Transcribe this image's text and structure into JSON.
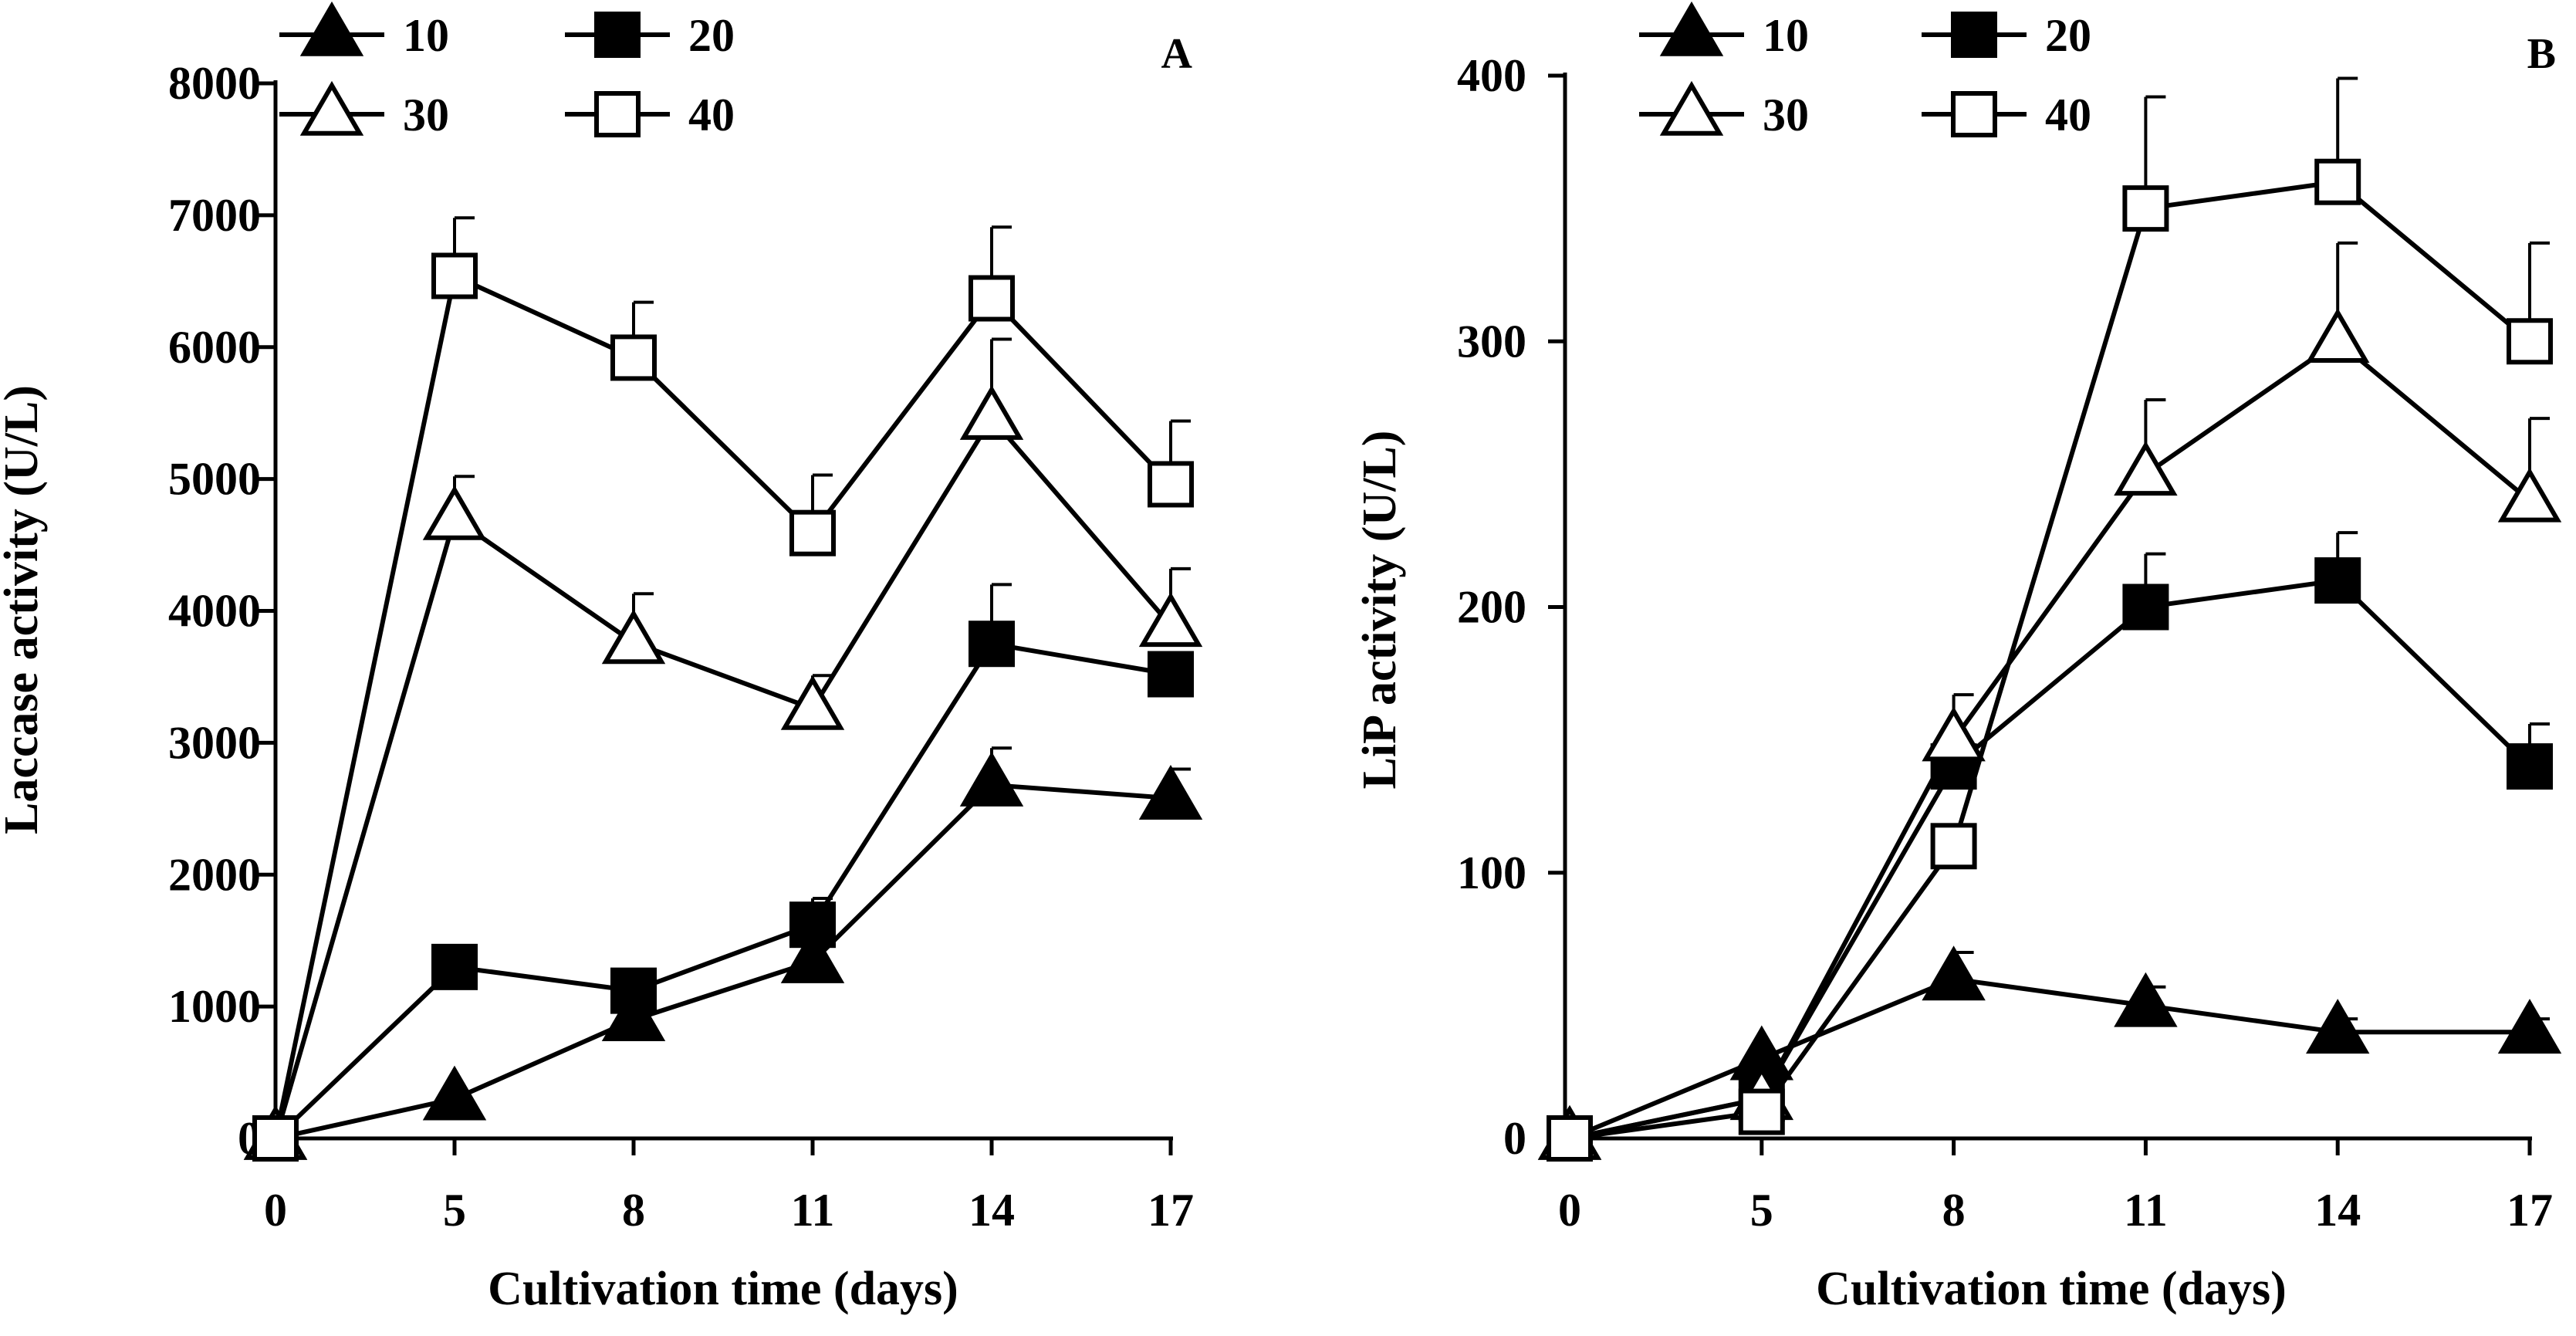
{
  "chart_data": [
    {
      "type": "line",
      "panel_label": "A",
      "title": "",
      "xlabel": "Cultivation time (days)",
      "ylabel": "Laccase activity (U/L)",
      "categories": [
        "0",
        "5",
        "8",
        "11",
        "14",
        "17"
      ],
      "ylim": [
        0,
        8000
      ],
      "yticks": [
        0,
        1000,
        2000,
        3000,
        4000,
        5000,
        6000,
        7000,
        8000
      ],
      "ytick_labels": [
        "0",
        "1000",
        "2000",
        "3000",
        "4000",
        "5000",
        "6000",
        "7000",
        "8000"
      ],
      "grid": false,
      "legend_position": "top",
      "series": [
        {
          "name": "10",
          "marker": "triangle-filled",
          "values": [
            0,
            300,
            900,
            1340,
            2680,
            2580
          ],
          "errors": [
            0,
            0,
            0,
            0,
            280,
            220
          ]
        },
        {
          "name": "20",
          "marker": "square-filled",
          "values": [
            0,
            1300,
            1120,
            1620,
            3750,
            3520
          ],
          "errors": [
            0,
            0,
            0,
            200,
            450,
            0
          ]
        },
        {
          "name": "30",
          "marker": "triangle-open",
          "values": [
            0,
            4700,
            3760,
            3260,
            5460,
            3890
          ],
          "errors": [
            0,
            320,
            370,
            250,
            600,
            430
          ]
        },
        {
          "name": "40",
          "marker": "square-open",
          "values": [
            0,
            6540,
            5920,
            4590,
            6370,
            4960
          ],
          "errors": [
            0,
            440,
            420,
            440,
            540,
            480
          ]
        }
      ]
    },
    {
      "type": "line",
      "panel_label": "B",
      "title": "",
      "xlabel": "Cultivation time (days)",
      "ylabel": "LiP activity (U/L)",
      "categories": [
        "0",
        "5",
        "8",
        "11",
        "14",
        "17"
      ],
      "ylim": [
        0,
        400
      ],
      "yticks": [
        0,
        100,
        200,
        300,
        400
      ],
      "ytick_labels": [
        "0",
        "100",
        "200",
        "300",
        "400"
      ],
      "grid": false,
      "legend_position": "top",
      "series": [
        {
          "name": "10",
          "marker": "triangle-filled",
          "values": [
            0,
            30,
            60,
            50,
            40,
            40
          ],
          "errors": [
            0,
            0,
            10,
            7,
            5,
            5
          ]
        },
        {
          "name": "20",
          "marker": "square-filled",
          "values": [
            0,
            15,
            140,
            200,
            210,
            140
          ],
          "errors": [
            0,
            0,
            0,
            20,
            18,
            16
          ]
        },
        {
          "name": "30",
          "marker": "triangle-open",
          "values": [
            0,
            15,
            150,
            250,
            300,
            240
          ],
          "errors": [
            0,
            0,
            17,
            28,
            37,
            31
          ]
        },
        {
          "name": "40",
          "marker": "square-open",
          "values": [
            0,
            10,
            110,
            350,
            360,
            300
          ],
          "errors": [
            0,
            0,
            8,
            42,
            39,
            37
          ]
        }
      ]
    }
  ]
}
